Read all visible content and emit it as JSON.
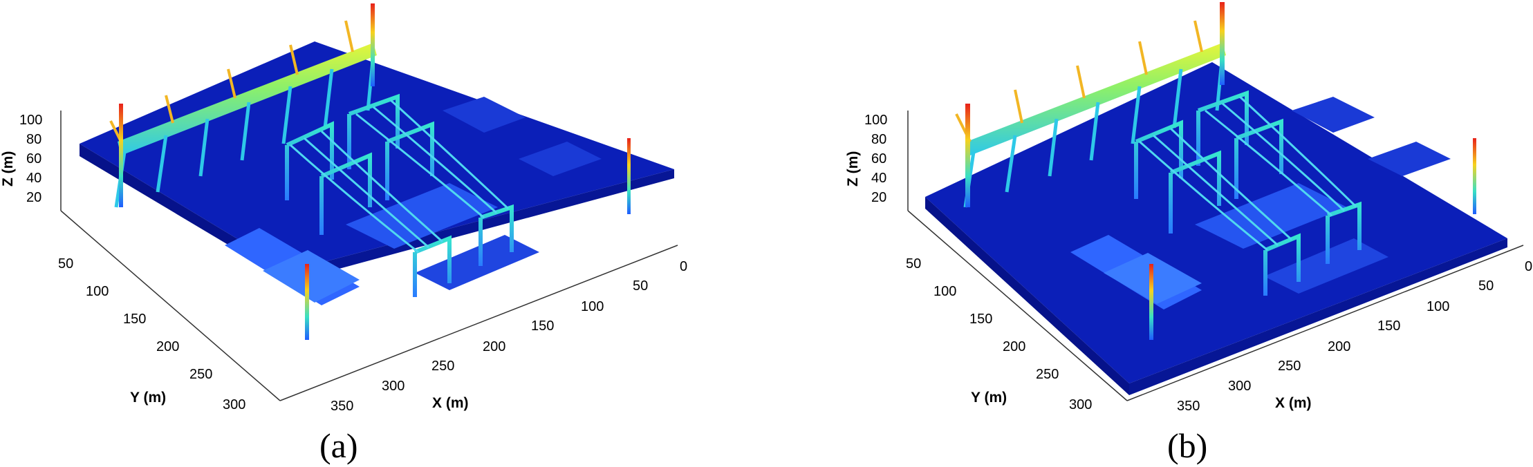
{
  "panels": [
    {
      "id": "a",
      "label": "(a)",
      "z_axis": {
        "title": "Z (m)",
        "ticks": [
          "20",
          "40",
          "60",
          "80",
          "100"
        ]
      },
      "y_axis": {
        "title": "Y (m)",
        "ticks": [
          "50",
          "100",
          "150",
          "200",
          "250",
          "300"
        ]
      },
      "x_axis": {
        "title": "X (m)",
        "ticks": [
          "0",
          "50",
          "100",
          "150",
          "200",
          "250",
          "300",
          "350"
        ]
      }
    },
    {
      "id": "b",
      "label": "(b)",
      "z_axis": {
        "title": "Z (m)",
        "ticks": [
          "20",
          "40",
          "60",
          "80",
          "100"
        ]
      },
      "y_axis": {
        "title": "Y (m)",
        "ticks": [
          "50",
          "100",
          "150",
          "200",
          "250",
          "300"
        ]
      },
      "x_axis": {
        "title": "X (m)",
        "ticks": [
          "0",
          "50",
          "100",
          "150",
          "200",
          "250",
          "300",
          "350"
        ]
      }
    }
  ],
  "colors": {
    "ground": "#0b1fb8",
    "ground_dark": "#06128a",
    "low": "#1f5dff",
    "mid": "#2fd6e6",
    "high": "#d9f23a",
    "top": "#e8211a"
  }
}
